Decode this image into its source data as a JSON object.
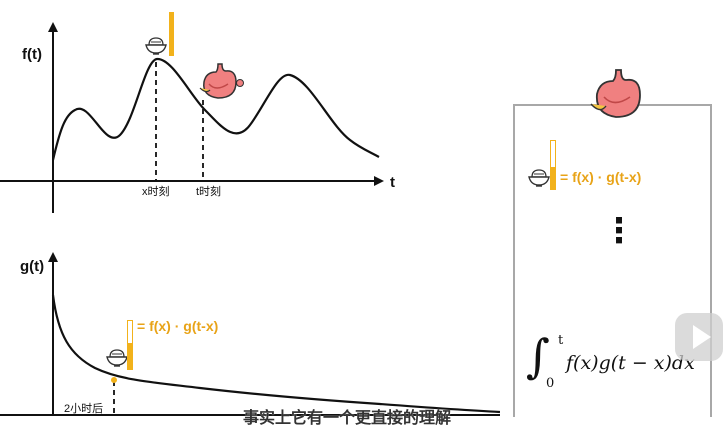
{
  "top_graph": {
    "y_label": "f(t)",
    "x_label": "t",
    "x_marker_label": "x时刻",
    "t_marker_label": "t时刻"
  },
  "bottom_graph": {
    "y_label": "g(t)",
    "marker_label": "2小时后",
    "formula": "= f(x) · g(t-x)"
  },
  "right_panel": {
    "formula": "= f(x) · g(t-x)",
    "ellipsis": "⋮",
    "integral": {
      "upper": "t",
      "lower": "0",
      "body": "f(x)g(t − x)dx"
    }
  },
  "subtitle": "事实上它有一个更直接的理解",
  "colors": {
    "accent": "#f2b21b",
    "stomach": "#f08080",
    "curve": "#111111"
  },
  "icons": [
    "rice-bowl-icon",
    "stomach-icon",
    "play-button-icon"
  ]
}
